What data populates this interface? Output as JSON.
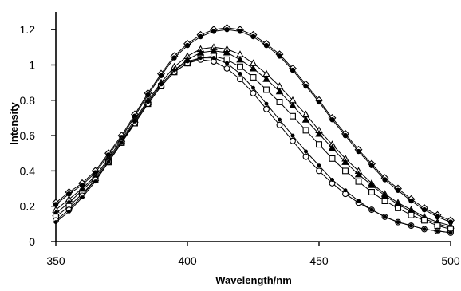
{
  "chart_data": {
    "type": "line",
    "xlabel": "Wavelength/nm",
    "ylabel": "Intensity",
    "xlim": [
      350,
      500
    ],
    "ylim": [
      0,
      1.3
    ],
    "xticks": [
      350,
      400,
      450,
      500
    ],
    "yticks": [
      0,
      0.2,
      0.4,
      0.6,
      0.8,
      1,
      1.2
    ],
    "ytick_labels": [
      "0",
      "0.2",
      "0.4",
      "0.6",
      "0.8",
      "1",
      "1.2"
    ],
    "grid": false,
    "x": [
      350,
      355,
      360,
      365,
      370,
      375,
      380,
      385,
      390,
      395,
      400,
      405,
      410,
      415,
      420,
      425,
      430,
      435,
      440,
      445,
      450,
      455,
      460,
      465,
      470,
      475,
      480,
      485,
      490,
      495,
      500
    ],
    "series": [
      {
        "marker": "diamond-open",
        "values": [
          0.22,
          0.28,
          0.33,
          0.4,
          0.5,
          0.6,
          0.72,
          0.84,
          0.95,
          1.05,
          1.12,
          1.17,
          1.2,
          1.21,
          1.2,
          1.17,
          1.12,
          1.06,
          0.98,
          0.89,
          0.8,
          0.7,
          0.61,
          0.52,
          0.44,
          0.36,
          0.3,
          0.24,
          0.19,
          0.15,
          0.12
        ]
      },
      {
        "marker": "circle-filled",
        "values": [
          0.21,
          0.27,
          0.32,
          0.39,
          0.49,
          0.59,
          0.71,
          0.83,
          0.94,
          1.04,
          1.11,
          1.16,
          1.19,
          1.2,
          1.19,
          1.16,
          1.11,
          1.05,
          0.97,
          0.88,
          0.79,
          0.69,
          0.6,
          0.51,
          0.43,
          0.35,
          0.29,
          0.23,
          0.18,
          0.14,
          0.11
        ]
      },
      {
        "marker": "triangle-open",
        "values": [
          0.18,
          0.24,
          0.3,
          0.37,
          0.47,
          0.58,
          0.69,
          0.8,
          0.9,
          0.99,
          1.05,
          1.09,
          1.1,
          1.09,
          1.06,
          1.01,
          0.95,
          0.88,
          0.8,
          0.72,
          0.63,
          0.55,
          0.47,
          0.4,
          0.33,
          0.27,
          0.22,
          0.18,
          0.14,
          0.11,
          0.09
        ]
      },
      {
        "marker": "triangle-filled",
        "values": [
          0.16,
          0.22,
          0.29,
          0.36,
          0.46,
          0.57,
          0.68,
          0.79,
          0.89,
          0.97,
          1.03,
          1.07,
          1.08,
          1.07,
          1.03,
          0.98,
          0.92,
          0.85,
          0.77,
          0.69,
          0.61,
          0.53,
          0.45,
          0.38,
          0.32,
          0.26,
          0.21,
          0.17,
          0.13,
          0.1,
          0.08
        ]
      },
      {
        "marker": "square-open",
        "values": [
          0.14,
          0.2,
          0.27,
          0.35,
          0.45,
          0.56,
          0.67,
          0.78,
          0.88,
          0.96,
          1.01,
          1.04,
          1.05,
          1.03,
          0.99,
          0.93,
          0.86,
          0.79,
          0.71,
          0.63,
          0.55,
          0.47,
          0.4,
          0.34,
          0.28,
          0.23,
          0.19,
          0.15,
          0.12,
          0.09,
          0.07
        ]
      },
      {
        "marker": "circle-open",
        "values": [
          0.12,
          0.18,
          0.26,
          0.35,
          0.45,
          0.56,
          0.67,
          0.78,
          0.88,
          0.96,
          1.01,
          1.03,
          1.02,
          0.98,
          0.92,
          0.84,
          0.75,
          0.66,
          0.57,
          0.48,
          0.4,
          0.33,
          0.27,
          0.22,
          0.18,
          0.14,
          0.11,
          0.09,
          0.07,
          0.06,
          0.05
        ]
      },
      {
        "marker": "dot-filled",
        "values": [
          0.11,
          0.17,
          0.25,
          0.34,
          0.45,
          0.56,
          0.68,
          0.79,
          0.89,
          0.97,
          1.02,
          1.04,
          1.04,
          1.01,
          0.95,
          0.87,
          0.78,
          0.69,
          0.6,
          0.51,
          0.43,
          0.35,
          0.29,
          0.23,
          0.18,
          0.14,
          0.11,
          0.09,
          0.07,
          0.06,
          0.05
        ]
      }
    ]
  }
}
